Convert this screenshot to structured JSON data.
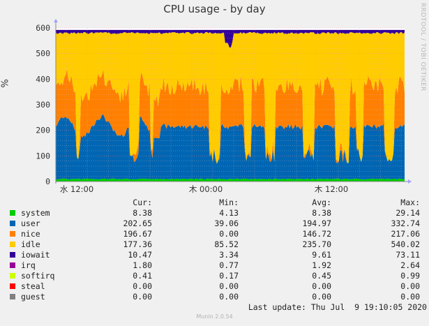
{
  "chart_data": {
    "type": "area",
    "stacked": true,
    "title": "CPU usage - by day",
    "ylabel": "%",
    "ylim": [
      0,
      600
    ],
    "yticks": [
      0,
      100,
      200,
      300,
      400,
      500,
      600
    ],
    "xticks": [
      "水 12:00",
      "木 00:00",
      "木 12:00"
    ],
    "grid": true,
    "legend_columns": [
      "Cur:",
      "Min:",
      "Avg:",
      "Max:"
    ],
    "series": [
      {
        "name": "system",
        "color": "#00cc00",
        "cur": "8.38",
        "min": "4.13",
        "avg": "8.38",
        "max": "29.14"
      },
      {
        "name": "user",
        "color": "#0066b3",
        "cur": "202.65",
        "min": "39.06",
        "avg": "194.97",
        "max": "332.74"
      },
      {
        "name": "nice",
        "color": "#ff8000",
        "cur": "196.67",
        "min": "0.00",
        "avg": "146.72",
        "max": "217.06"
      },
      {
        "name": "idle",
        "color": "#ffcc00",
        "cur": "177.36",
        "min": "85.52",
        "avg": "235.70",
        "max": "540.02"
      },
      {
        "name": "iowait",
        "color": "#330099",
        "cur": "10.47",
        "min": "3.34",
        "avg": "9.61",
        "max": "73.11"
      },
      {
        "name": "irq",
        "color": "#990099",
        "cur": "1.80",
        "min": "0.77",
        "avg": "1.92",
        "max": "2.64"
      },
      {
        "name": "softirq",
        "color": "#ccff00",
        "cur": "0.41",
        "min": "0.17",
        "avg": "0.45",
        "max": "0.99"
      },
      {
        "name": "steal",
        "color": "#ff0000",
        "cur": "0.00",
        "min": "0.00",
        "avg": "0.00",
        "max": "0.00"
      },
      {
        "name": "guest",
        "color": "#808080",
        "cur": "0.00",
        "min": "0.00",
        "avg": "0.00",
        "max": "0.00"
      }
    ],
    "watermark": "RRDTOOL / TOBI OETIKER",
    "last_update": "Last update: Thu Jul  9 19:10:05 2020",
    "footer": "Munin 2.0.54"
  }
}
